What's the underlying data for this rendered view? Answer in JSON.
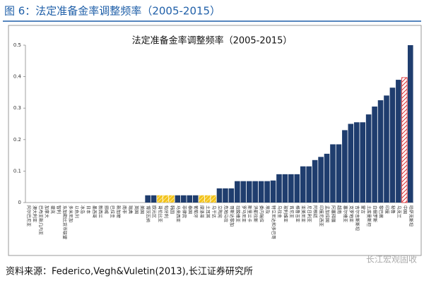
{
  "chart_data": {
    "type": "bar",
    "figure_label": "图 6：法定准备金率调整频率（2005-2015）",
    "title": "法定准备金率调整频率（2005-2015）",
    "source": "资料来源：Federico,Vegh&Vuletin(2013),长江证券研究所",
    "watermark": "长江宏观固收",
    "categories": [
      "阿尔巴尼亚",
      "澳大利亚",
      "巴布亚新几内亚",
      "加拿大",
      "捷克",
      "智利",
      "东加勒比货币联盟",
      "多米尼加",
      "以色列",
      "冰岛",
      "日本",
      "墨西哥",
      "新西兰",
      "挪威",
      "巴拉圭",
      "新加坡",
      "南非",
      "瑞典",
      "英国",
      "美国",
      "博茨瓦纳",
      "欧元区",
      "哥伦比亚",
      "匈牙利",
      "韩国",
      "马来西亚",
      "菲律宾",
      "泰国",
      "葡萄牙",
      "摩洛哥",
      "土耳其",
      "乌干达",
      "立陶宛",
      "危地马拉",
      "哥斯达黎加",
      "拉脱维亚",
      "罗马尼亚",
      "斯里兰卡",
      "洪都拉斯",
      "委内瑞拉",
      "埃及",
      "特立尼达和多巴哥",
      "乌拉圭",
      "玻利维亚",
      "肯尼亚",
      "格鲁吉亚",
      "亚美尼亚",
      "尼日利亚",
      "阿根廷",
      "印度尼西亚",
      "孟加拉国",
      "阿塞拜疆",
      "越南",
      "塞尔维亚",
      "克罗地亚",
      "吉尔吉斯斯坦",
      "蒙古",
      "土库曼斯坦",
      "白俄罗斯",
      "黎巴嫩",
      "印度",
      "秘鲁",
      "乌克兰",
      "中国",
      "哈萨克斯坦"
    ],
    "values": [
      0,
      0,
      0,
      0,
      0,
      0,
      0,
      0,
      0,
      0,
      0,
      0,
      0,
      0,
      0,
      0,
      0,
      0,
      0,
      0,
      0.023,
      0.023,
      0.023,
      0.023,
      0.023,
      0.023,
      0.023,
      0.023,
      0.023,
      0.023,
      0.023,
      0.023,
      0.045,
      0.045,
      0.045,
      0.068,
      0.068,
      0.068,
      0.068,
      0.068,
      0.068,
      0.07,
      0.09,
      0.09,
      0.09,
      0.09,
      0.115,
      0.115,
      0.135,
      0.145,
      0.155,
      0.185,
      0.185,
      0.23,
      0.25,
      0.255,
      0.255,
      0.28,
      0.305,
      0.325,
      0.34,
      0.365,
      0.39,
      0.397,
      0.5
    ],
    "colors": [
      "#1f3d6e",
      "#1f3d6e",
      "#1f3d6e",
      "#1f3d6e",
      "#1f3d6e",
      "#1f3d6e",
      "#1f3d6e",
      "#1f3d6e",
      "#1f3d6e",
      "#1f3d6e",
      "#1f3d6e",
      "#1f3d6e",
      "#1f3d6e",
      "#1f3d6e",
      "#1f3d6e",
      "#1f3d6e",
      "#1f3d6e",
      "#1f3d6e",
      "#1f3d6e",
      "#1f3d6e",
      "#1f3d6e",
      "#1f3d6e",
      "#f2c21b",
      "#f2c21b",
      "#f2c21b",
      "#1f3d6e",
      "#1f3d6e",
      "#1f3d6e",
      "#1f3d6e",
      "#f2c21b",
      "#f2c21b",
      "#f2c21b",
      "#1f3d6e",
      "#1f3d6e",
      "#1f3d6e",
      "#1f3d6e",
      "#1f3d6e",
      "#1f3d6e",
      "#1f3d6e",
      "#1f3d6e",
      "#1f3d6e",
      "#1f3d6e",
      "#1f3d6e",
      "#1f3d6e",
      "#1f3d6e",
      "#1f3d6e",
      "#1f3d6e",
      "#1f3d6e",
      "#1f3d6e",
      "#1f3d6e",
      "#1f3d6e",
      "#1f3d6e",
      "#1f3d6e",
      "#1f3d6e",
      "#1f3d6e",
      "#1f3d6e",
      "#1f3d6e",
      "#1f3d6e",
      "#1f3d6e",
      "#1f3d6e",
      "#1f3d6e",
      "#1f3d6e",
      "#1f3d6e",
      "#d9262b",
      "#1f3d6e"
    ],
    "ylim": [
      0,
      0.5
    ],
    "yticks": [
      0,
      0.1,
      0.2,
      0.3,
      0.4,
      0.5
    ],
    "grid": false
  }
}
